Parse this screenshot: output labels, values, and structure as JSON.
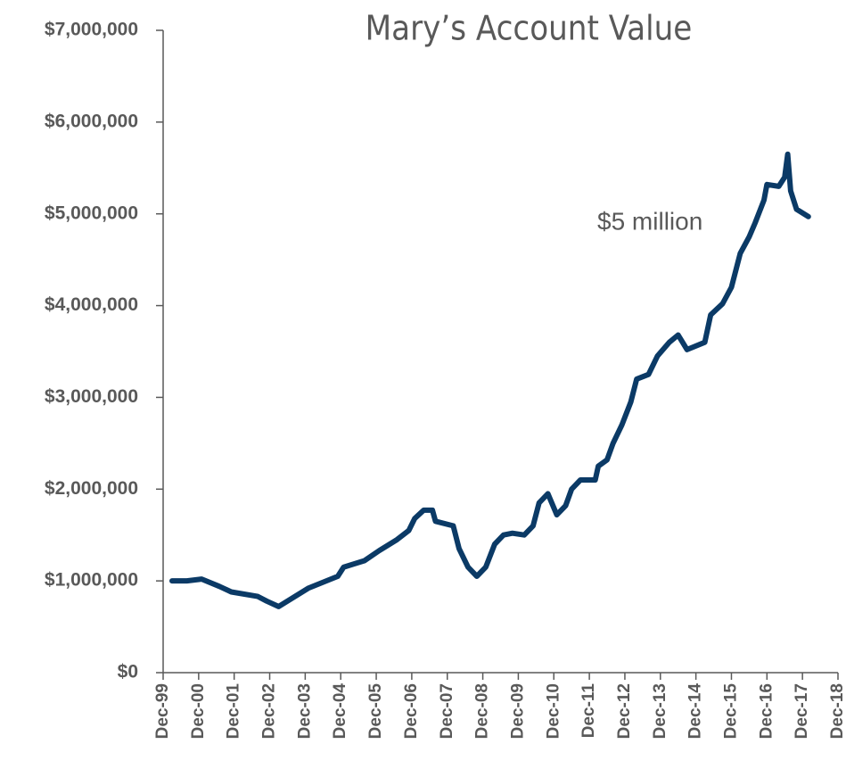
{
  "chart_data": {
    "type": "line",
    "title": "Mary’s Account Value",
    "annotation": "$5 million",
    "color": "#0b3a66",
    "x": [
      "2000-03",
      "2000-08",
      "2001-01",
      "2001-07",
      "2001-11",
      "2002-08",
      "2002-11",
      "2003-03",
      "2003-08",
      "2004-01",
      "2004-11",
      "2005-01",
      "2005-08",
      "2006-01",
      "2006-07",
      "2006-11",
      "2007-01",
      "2007-04",
      "2007-07",
      "2007-08",
      "2008-02",
      "2008-04",
      "2008-07",
      "2008-10",
      "2009-01",
      "2009-04",
      "2009-07",
      "2009-10",
      "2010-02",
      "2010-05",
      "2010-07",
      "2010-10",
      "2011-01",
      "2011-04",
      "2011-06",
      "2011-09",
      "2012-02",
      "2012-03",
      "2012-06",
      "2012-08",
      "2012-11",
      "2013-02",
      "2013-04",
      "2013-08",
      "2013-11",
      "2014-03",
      "2014-06",
      "2014-09",
      "2015-03",
      "2015-05",
      "2015-09",
      "2015-12",
      "2016-03",
      "2016-06",
      "2016-08",
      "2016-11",
      "2016-12",
      "2017-04",
      "2017-06",
      "2017-07",
      "2017-08",
      "2017-10",
      "2018-02"
    ],
    "values": [
      1000000,
      1000000,
      1020000,
      940000,
      880000,
      830000,
      780000,
      720000,
      820000,
      920000,
      1050000,
      1150000,
      1220000,
      1330000,
      1450000,
      1550000,
      1680000,
      1770000,
      1770000,
      1650000,
      1600000,
      1350000,
      1150000,
      1050000,
      1150000,
      1400000,
      1500000,
      1520000,
      1500000,
      1600000,
      1850000,
      1950000,
      1720000,
      1820000,
      2000000,
      2100000,
      2100000,
      2250000,
      2320000,
      2500000,
      2700000,
      2950000,
      3200000,
      3250000,
      3450000,
      3600000,
      3680000,
      3520000,
      3600000,
      3900000,
      4020000,
      4200000,
      4570000,
      4750000,
      4900000,
      5150000,
      5320000,
      5300000,
      5400000,
      5650000,
      5250000,
      5050000,
      4970000
    ],
    "xlim": [
      "1999-12",
      "2018-12"
    ],
    "xticks": [
      {
        "value": "1999-12",
        "label": "Dec-99"
      },
      {
        "value": "2000-12",
        "label": "Dec-00"
      },
      {
        "value": "2001-12",
        "label": "Dec-01"
      },
      {
        "value": "2002-12",
        "label": "Dec-02"
      },
      {
        "value": "2003-12",
        "label": "Dec-03"
      },
      {
        "value": "2004-12",
        "label": "Dec-04"
      },
      {
        "value": "2005-12",
        "label": "Dec-05"
      },
      {
        "value": "2006-12",
        "label": "Dec-06"
      },
      {
        "value": "2007-12",
        "label": "Dec-07"
      },
      {
        "value": "2008-12",
        "label": "Dec-08"
      },
      {
        "value": "2009-12",
        "label": "Dec-09"
      },
      {
        "value": "2010-12",
        "label": "Dec-10"
      },
      {
        "value": "2011-12",
        "label": "Dec-11"
      },
      {
        "value": "2012-12",
        "label": "Dec-12"
      },
      {
        "value": "2013-12",
        "label": "Dec-13"
      },
      {
        "value": "2014-12",
        "label": "Dec-14"
      },
      {
        "value": "2015-12",
        "label": "Dec-15"
      },
      {
        "value": "2016-12",
        "label": "Dec-16"
      },
      {
        "value": "2017-12",
        "label": "Dec-17"
      },
      {
        "value": "2018-12",
        "label": "Dec-18"
      }
    ],
    "ylim": [
      0,
      7000000
    ],
    "yticks": [
      {
        "value": 0,
        "label": "$0"
      },
      {
        "value": 1000000,
        "label": "$1,000,000"
      },
      {
        "value": 2000000,
        "label": "$2,000,000"
      },
      {
        "value": 3000000,
        "label": "$3,000,000"
      },
      {
        "value": 4000000,
        "label": "$4,000,000"
      },
      {
        "value": 5000000,
        "label": "$5,000,000"
      },
      {
        "value": 6000000,
        "label": "$6,000,000"
      },
      {
        "value": 7000000,
        "label": "$7,000,000"
      }
    ],
    "grid": false
  }
}
